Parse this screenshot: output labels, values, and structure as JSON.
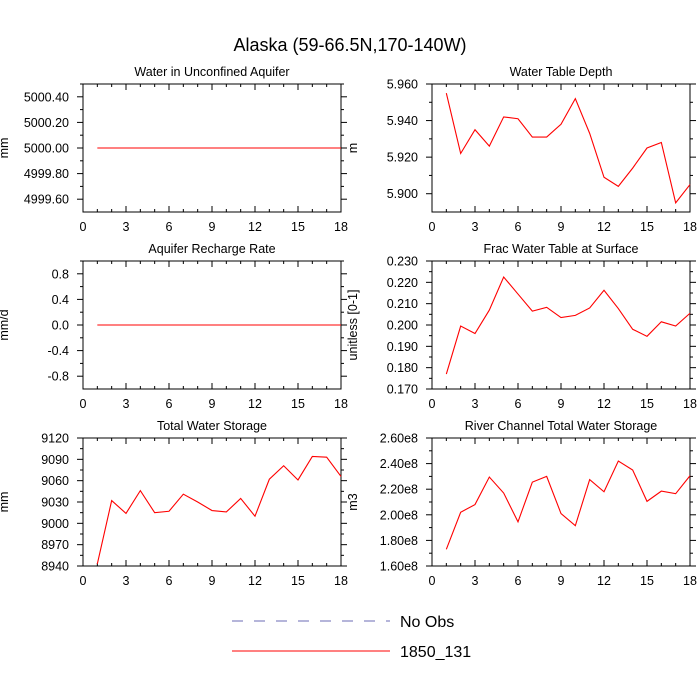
{
  "figure": {
    "title": "Alaska (59-66.5N,170-140W)",
    "legend": [
      {
        "label": "No Obs",
        "color": "#6b6bb5",
        "dash": true
      },
      {
        "label": "1850_131",
        "color": "#ff0000",
        "dash": false
      }
    ]
  },
  "chart_data": [
    {
      "type": "line",
      "title": "Water in Unconfined Aquifer",
      "ylabel": "mm",
      "xlim": [
        0,
        18
      ],
      "xticks": [
        0,
        3,
        6,
        9,
        12,
        15,
        18
      ],
      "ylim": [
        4999.5,
        5000.5
      ],
      "yticks": [
        4999.6,
        4999.8,
        5000.0,
        5000.2,
        5000.4
      ],
      "ytick_labels": [
        "4999.60",
        "4999.80",
        "5000.00",
        "5000.20",
        "5000.40"
      ],
      "series": [
        {
          "name": "1850_131",
          "color": "#ff0000",
          "x": [
            1,
            18
          ],
          "y": [
            5000.0,
            5000.0
          ]
        }
      ]
    },
    {
      "type": "line",
      "title": "Water Table Depth",
      "ylabel": "m",
      "xlim": [
        0,
        18
      ],
      "xticks": [
        0,
        3,
        6,
        9,
        12,
        15,
        18
      ],
      "ylim": [
        5.89,
        5.96
      ],
      "yticks": [
        5.9,
        5.92,
        5.94,
        5.96
      ],
      "ytick_labels": [
        "5.900",
        "5.920",
        "5.940",
        "5.960"
      ],
      "series": [
        {
          "name": "1850_131",
          "color": "#ff0000",
          "x": [
            1,
            2,
            3,
            4,
            5,
            6,
            7,
            8,
            9,
            10,
            11,
            12,
            13,
            14,
            15,
            16,
            17,
            18
          ],
          "y": [
            5.955,
            5.922,
            5.935,
            5.926,
            5.942,
            5.941,
            5.931,
            5.931,
            5.938,
            5.952,
            5.933,
            5.909,
            5.904,
            5.914,
            5.925,
            5.928,
            5.895,
            5.905
          ]
        }
      ]
    },
    {
      "type": "line",
      "title": "Aquifer Recharge Rate",
      "ylabel": "mm/d",
      "xlim": [
        0,
        18
      ],
      "xticks": [
        0,
        3,
        6,
        9,
        12,
        15,
        18
      ],
      "ylim": [
        -1.0,
        1.0
      ],
      "yticks": [
        -0.8,
        -0.4,
        0.0,
        0.4,
        0.8
      ],
      "ytick_labels": [
        "-0.8",
        "-0.4",
        "0.0",
        "0.4",
        "0.8"
      ],
      "series": [
        {
          "name": "1850_131",
          "color": "#ff0000",
          "x": [
            1,
            18
          ],
          "y": [
            0.0,
            0.0
          ]
        }
      ]
    },
    {
      "type": "line",
      "title": "Frac Water Table at Surface",
      "ylabel": "unitless [0-1]",
      "xlim": [
        0,
        18
      ],
      "xticks": [
        0,
        3,
        6,
        9,
        12,
        15,
        18
      ],
      "ylim": [
        0.17,
        0.23
      ],
      "yticks": [
        0.17,
        0.18,
        0.19,
        0.2,
        0.21,
        0.22,
        0.23
      ],
      "ytick_labels": [
        "0.170",
        "0.180",
        "0.190",
        "0.200",
        "0.210",
        "0.220",
        "0.230"
      ],
      "series": [
        {
          "name": "1850_131",
          "color": "#ff0000",
          "x": [
            1,
            2,
            3,
            4,
            5,
            6,
            7,
            8,
            9,
            10,
            11,
            12,
            13,
            14,
            15,
            16,
            17,
            18
          ],
          "y": [
            0.177,
            0.1995,
            0.196,
            0.207,
            0.2225,
            0.2145,
            0.2065,
            0.2083,
            0.2035,
            0.2045,
            0.208,
            0.2163,
            0.2077,
            0.198,
            0.1947,
            0.2015,
            0.1995,
            0.2055
          ]
        }
      ]
    },
    {
      "type": "line",
      "title": "Total Water Storage",
      "ylabel": "mm",
      "xlim": [
        0,
        18
      ],
      "xticks": [
        0,
        3,
        6,
        9,
        12,
        15,
        18
      ],
      "ylim": [
        8940,
        9120
      ],
      "yticks": [
        8940,
        8970,
        9000,
        9030,
        9060,
        9090,
        9120
      ],
      "ytick_labels": [
        "8940",
        "8970",
        "9000",
        "9030",
        "9060",
        "9090",
        "9120"
      ],
      "series": [
        {
          "name": "1850_131",
          "color": "#ff0000",
          "x": [
            1,
            2,
            3,
            4,
            5,
            6,
            7,
            8,
            9,
            10,
            11,
            12,
            13,
            14,
            15,
            16,
            17,
            18
          ],
          "y": [
            8943,
            9032,
            9014,
            9046,
            9015,
            9017,
            9041,
            9030,
            9018,
            9016,
            9035,
            9010,
            9062,
            9081,
            9061,
            9094,
            9093,
            9066
          ]
        }
      ]
    },
    {
      "type": "line",
      "title": "River Channel Total Water Storage",
      "ylabel": "m3",
      "xlim": [
        0,
        18
      ],
      "xticks": [
        0,
        3,
        6,
        9,
        12,
        15,
        18
      ],
      "ylim": [
        160000000,
        260000000
      ],
      "yticks": [
        160000000,
        180000000,
        200000000,
        220000000,
        240000000,
        260000000
      ],
      "ytick_labels": [
        "1.60e8",
        "1.80e8",
        "2.00e8",
        "2.20e8",
        "2.40e8",
        "2.60e8"
      ],
      "series": [
        {
          "name": "1850_131",
          "color": "#ff0000",
          "x": [
            1,
            2,
            3,
            4,
            5,
            6,
            7,
            8,
            9,
            10,
            11,
            12,
            13,
            14,
            15,
            16,
            17,
            18
          ],
          "y": [
            173000000,
            202000000,
            208000000,
            229500000,
            217000000,
            194500000,
            225500000,
            230000000,
            201000000,
            191500000,
            227500000,
            218000000,
            242000000,
            235000000,
            210500000,
            218500000,
            216500000,
            230500000
          ]
        }
      ]
    }
  ]
}
